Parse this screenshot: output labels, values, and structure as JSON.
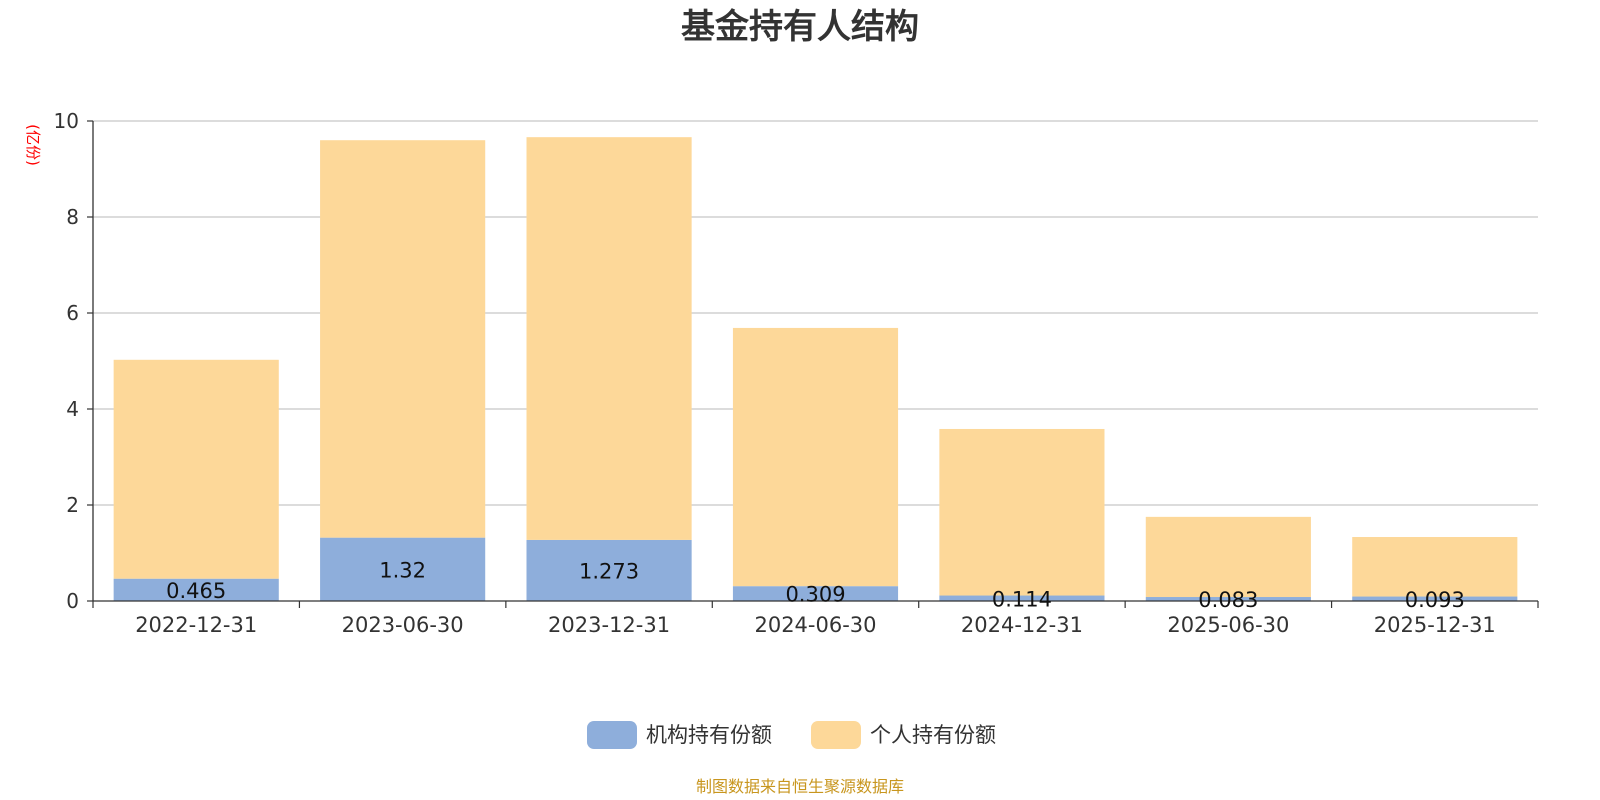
{
  "chart_data": {
    "type": "bar",
    "stacked": true,
    "title": "基金持有人结构",
    "ylabel": "(亿份)",
    "xlabel": "",
    "ylim": [
      0,
      10
    ],
    "yticks": [
      "0",
      "2",
      "4",
      "6",
      "8",
      "10"
    ],
    "ytick_values": [
      0,
      2,
      4,
      6,
      8,
      10
    ],
    "grid": true,
    "legend_position": "bottom-center",
    "categories": [
      "2022-12-31",
      "2023-06-30",
      "2023-12-31",
      "2024-06-30",
      "2024-12-31",
      "2025-06-30",
      "2025-12-31"
    ],
    "series": [
      {
        "name": "机构持有份额",
        "color": "#8eaedb",
        "values": [
          0.465,
          1.32,
          1.273,
          0.309,
          0.114,
          0.083,
          0.093
        ],
        "labels": [
          "0.465",
          "1.32",
          "1.273",
          "0.309",
          "0.114",
          "0.083",
          "0.093"
        ]
      },
      {
        "name": "个人持有份额",
        "color": "#fdd899",
        "values": [
          4.56,
          8.28,
          8.39,
          5.38,
          3.47,
          1.67,
          1.24
        ]
      }
    ],
    "source": "制图数据来自恒生聚源数据库"
  }
}
